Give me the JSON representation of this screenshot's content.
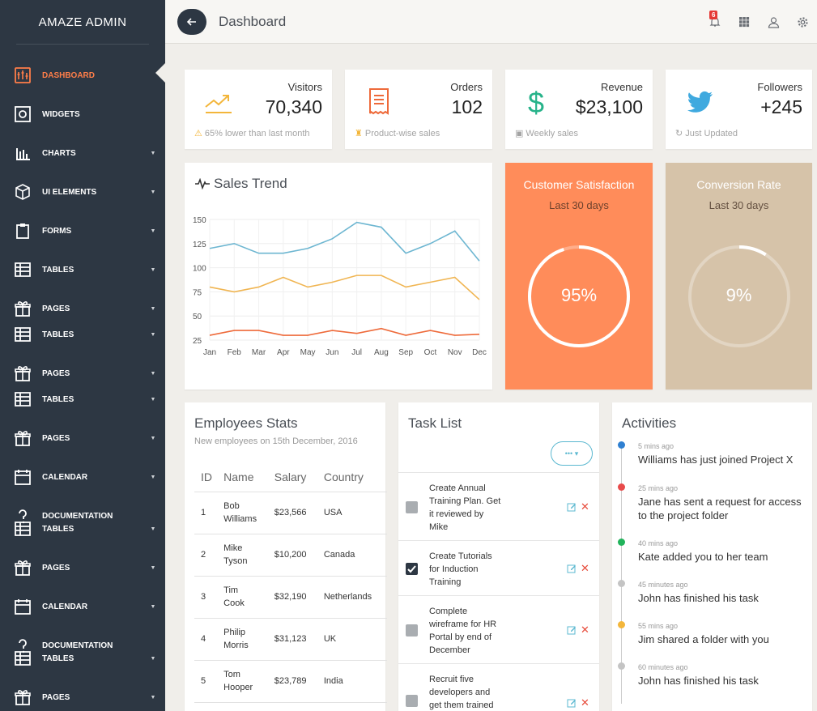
{
  "sidebar": {
    "brand": "AMAZE ADMIN",
    "items": [
      {
        "label": "DASHBOARD",
        "icon": "dashboard-icon",
        "active": true,
        "chevron": false
      },
      {
        "label": "WIDGETS",
        "icon": "widgets-icon",
        "chevron": false
      },
      {
        "label": "CHARTS",
        "icon": "charts-icon",
        "chevron": true
      },
      {
        "label": "UI ELEMENTS",
        "icon": "cube-icon",
        "chevron": true
      },
      {
        "label": "FORMS",
        "icon": "clipboard-icon",
        "chevron": true
      },
      {
        "label": "TABLES",
        "icon": "table-icon",
        "chevron": true
      },
      {
        "label": "PAGES",
        "icon": "gift-icon",
        "chevron": true
      },
      {
        "label": "TABLES",
        "icon": "table-icon",
        "chevron": true
      },
      {
        "label": "PAGES",
        "icon": "gift-icon",
        "chevron": true
      },
      {
        "label": "TABLES",
        "icon": "table-icon",
        "chevron": true
      },
      {
        "label": "PAGES",
        "icon": "gift-icon",
        "chevron": true
      },
      {
        "label": "CALENDAR",
        "icon": "calendar-icon",
        "chevron": true
      },
      {
        "label": "DOCUMENTATION",
        "icon": "question-icon",
        "chevron": false
      },
      {
        "label": "TABLES",
        "icon": "table-icon",
        "chevron": true
      },
      {
        "label": "PAGES",
        "icon": "gift-icon",
        "chevron": true
      },
      {
        "label": "CALENDAR",
        "icon": "calendar-icon",
        "chevron": true
      },
      {
        "label": "DOCUMENTATION",
        "icon": "question-icon",
        "chevron": false
      },
      {
        "label": "TABLES",
        "icon": "table-icon",
        "chevron": true
      },
      {
        "label": "PAGES",
        "icon": "gift-icon",
        "chevron": true
      }
    ]
  },
  "header": {
    "title": "Dashboard",
    "notification_count": "6"
  },
  "stats": [
    {
      "label": "Visitors",
      "value": "70,340",
      "foot": "65% lower than last month",
      "icon": "trend-up-icon",
      "color": "#f3b63b"
    },
    {
      "label": "Orders",
      "value": "102",
      "foot": "Product-wise sales",
      "icon": "receipt-icon",
      "color": "#ee6a3a"
    },
    {
      "label": "Revenue",
      "value": "$23,100",
      "foot": "Weekly sales",
      "icon": "dollar-icon",
      "color": "#27b38a"
    },
    {
      "label": "Followers",
      "value": "+245",
      "foot": "Just Updated",
      "icon": "twitter-icon",
      "color": "#3fa9df"
    }
  ],
  "sales": {
    "title": "Sales Trend"
  },
  "chart_data": {
    "type": "line",
    "categories": [
      "Jan",
      "Feb",
      "Mar",
      "Apr",
      "May",
      "Jun",
      "Jul",
      "Aug",
      "Sep",
      "Oct",
      "Nov",
      "Dec"
    ],
    "series": [
      {
        "values": [
          120,
          125,
          115,
          115,
          120,
          130,
          147,
          142,
          115,
          125,
          138,
          107
        ],
        "color": "#6db6d1"
      },
      {
        "values": [
          80,
          75,
          80,
          90,
          80,
          85,
          92,
          92,
          80,
          85,
          90,
          67
        ],
        "color": "#f0b552"
      },
      {
        "values": [
          30,
          35,
          35,
          30,
          30,
          35,
          32,
          37,
          30,
          35,
          30,
          31
        ],
        "color": "#ee6a3a"
      }
    ],
    "yticks": [
      25,
      50,
      75,
      100,
      125,
      150
    ],
    "ylim": [
      25,
      150
    ],
    "grid": true
  },
  "gauges": [
    {
      "title": "Customer Satisfaction",
      "sub": "Last 30 days",
      "value_text": "95%",
      "fraction": 0.95,
      "bg": "#ff8c5a"
    },
    {
      "title": "Conversion Rate",
      "sub": "Last 30 days",
      "value_text": "9%",
      "fraction": 0.09,
      "bg": "#d6c3a9"
    }
  ],
  "employees": {
    "title": "Employees Stats",
    "subtitle": "New employees on 15th December, 2016",
    "headers": [
      "ID",
      "Name",
      "Salary",
      "Country"
    ],
    "rows": [
      {
        "id": "1",
        "first": "Bob",
        "last": "Williams",
        "salary": "$23,566",
        "country": "USA"
      },
      {
        "id": "2",
        "first": "Mike",
        "last": "Tyson",
        "salary": "$10,200",
        "country": "Canada"
      },
      {
        "id": "3",
        "first": "Tim",
        "last": "Cook",
        "salary": "$32,190",
        "country": "Netherlands"
      },
      {
        "id": "4",
        "first": "Philip",
        "last": "Morris",
        "salary": "$31,123",
        "country": "UK"
      },
      {
        "id": "5",
        "first": "Tom",
        "last": "Hooper",
        "salary": "$23,789",
        "country": "India"
      }
    ]
  },
  "tasks": {
    "title": "Task List",
    "more": "•••",
    "items": [
      {
        "lines": [
          "Create Annual",
          "Training Plan. Get",
          "it reviewed by",
          "Mike"
        ],
        "done": false
      },
      {
        "lines": [
          "Create Tutorials",
          "for Induction",
          "Training"
        ],
        "done": true
      },
      {
        "lines": [
          "Complete",
          "wireframe for HR",
          "Portal by end of",
          "December"
        ],
        "done": false
      },
      {
        "lines": [
          "Recruit five",
          "developers and",
          "get them trained"
        ],
        "done": false
      }
    ]
  },
  "activities": {
    "title": "Activities",
    "items": [
      {
        "time": "5 mins ago",
        "lines": [
          "Williams has just joined Project X"
        ],
        "color": "#2f80d1"
      },
      {
        "time": "25 mins ago",
        "lines": [
          "Jane has sent a request for access",
          "to the project folder"
        ],
        "color": "#e84b4b"
      },
      {
        "time": "40 mins ago",
        "lines": [
          "Kate added you to her team"
        ],
        "color": "#21b35b"
      },
      {
        "time": "45 minutes ago",
        "lines": [
          "John has finished his task"
        ],
        "color": "#c4c4c4"
      },
      {
        "time": "55 mins ago",
        "lines": [
          "Jim shared a folder with you"
        ],
        "color": "#f3b63b"
      },
      {
        "time": "60 minutes ago",
        "lines": [
          "John has finished his task"
        ],
        "color": "#c4c4c4"
      }
    ]
  }
}
